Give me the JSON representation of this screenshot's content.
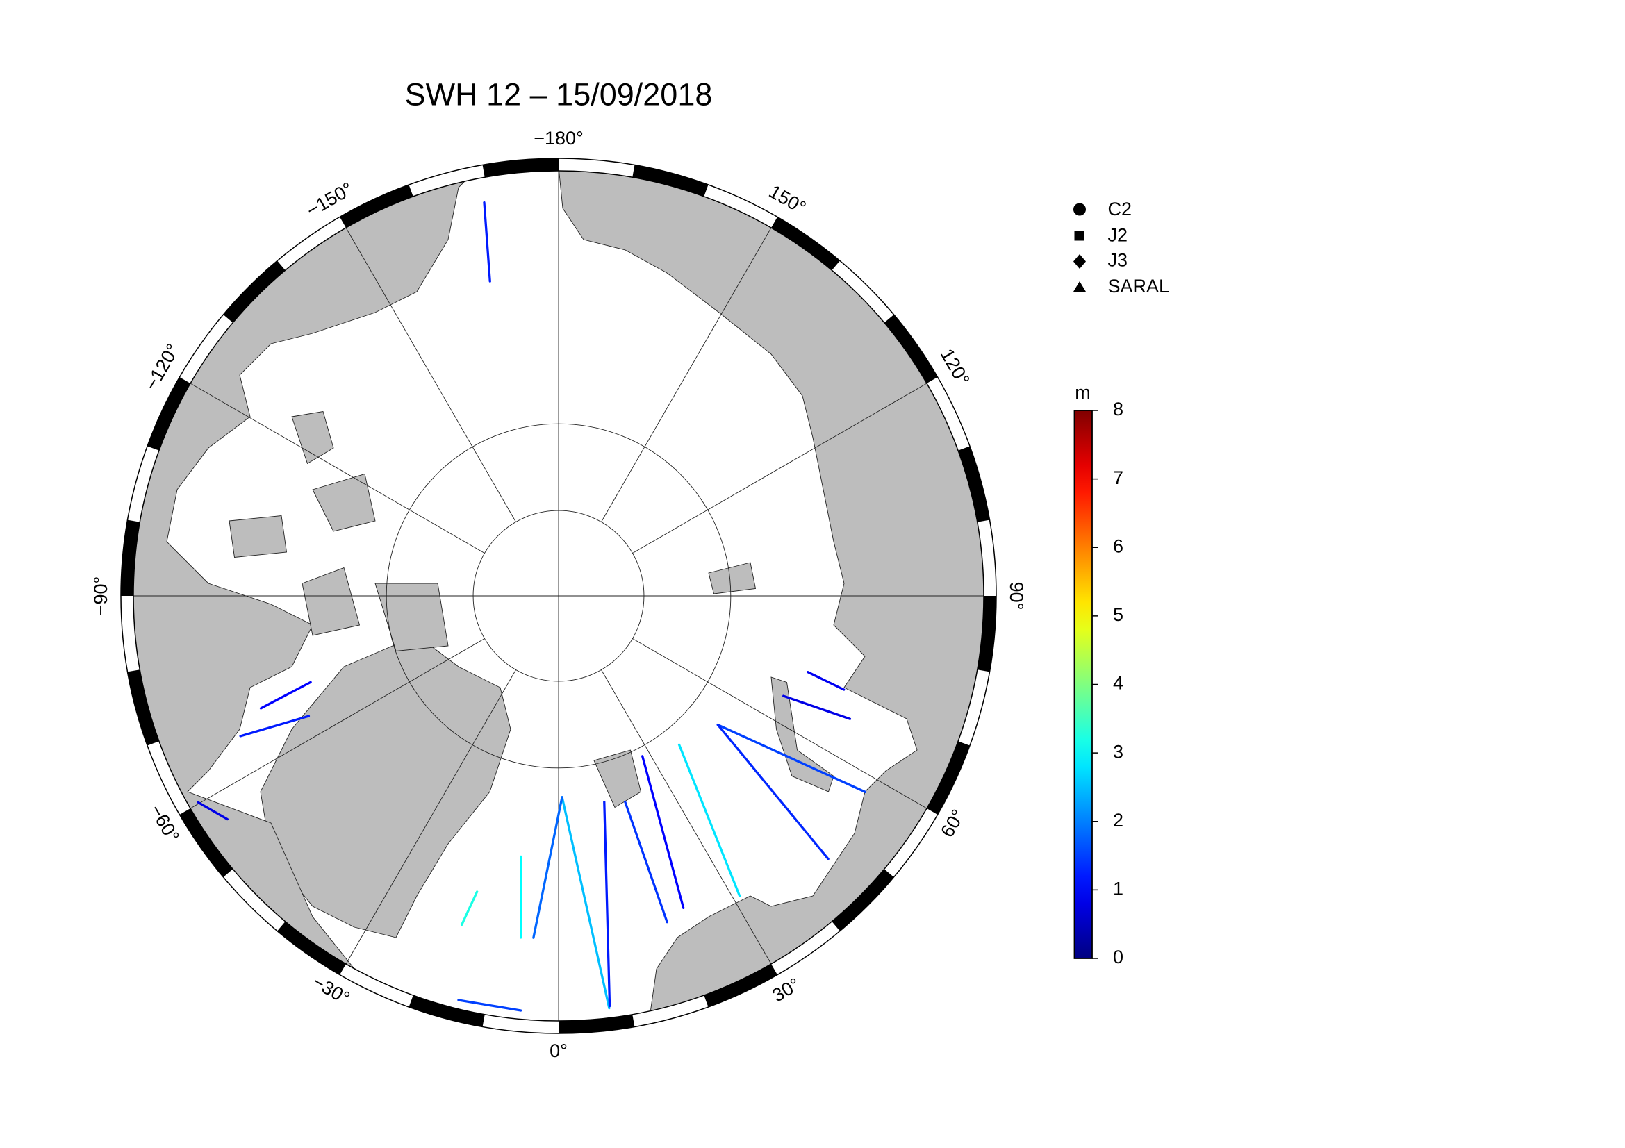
{
  "title": "SWH 12 – 15/09/2018",
  "lon_labels": [
    {
      "value": -180,
      "label": "−180°"
    },
    {
      "value": -150,
      "label": "−150°"
    },
    {
      "value": -120,
      "label": "−120°"
    },
    {
      "value": -90,
      "label": "−90°"
    },
    {
      "value": -60,
      "label": "−60°"
    },
    {
      "value": -30,
      "label": "−30°"
    },
    {
      "value": 0,
      "label": "0°"
    },
    {
      "value": 30,
      "label": "30°"
    },
    {
      "value": 60,
      "label": "60°"
    },
    {
      "value": 90,
      "label": "90°"
    },
    {
      "value": 120,
      "label": "120°"
    },
    {
      "value": 150,
      "label": "150°"
    }
  ],
  "legend": [
    "C2",
    "J2",
    "J3",
    "SARAL"
  ],
  "colorbar": {
    "unit": "m",
    "lim": [
      0,
      8
    ],
    "ticks": [
      0,
      1,
      2,
      3,
      4,
      5,
      6,
      7,
      8
    ]
  },
  "tracks": [
    {
      "lon": [
        1,
        7
      ],
      "lat": [
        66.7,
        43.9
      ],
      "swh": 2.5
    },
    {
      "lon": [
        1,
        -4.2
      ],
      "lat": [
        66.7,
        51.3
      ],
      "swh": 1.8
    },
    {
      "lon": [
        12.5,
        7.1
      ],
      "lat": [
        65.6,
        44.1
      ],
      "swh": 1.2
    },
    {
      "lon": [
        39,
        31.1
      ],
      "lat": [
        67.8,
        50.5
      ],
      "swh": 2.8
    },
    {
      "lon": [
        51,
        57.4
      ],
      "lat": [
        66.3,
        49.1
      ],
      "swh": 1.5
    },
    {
      "lon": [
        51,
        45.7
      ],
      "lat": [
        66.3,
        47.8
      ],
      "swh": 1.3
    },
    {
      "lon": [
        27.6,
        21.8
      ],
      "lat": [
        69,
        52
      ],
      "swh": 1.0
    },
    {
      "lon": [
        17.9,
        18.4
      ],
      "lat": [
        65,
        51.2
      ],
      "swh": 1.4
    },
    {
      "lon": [
        -8.2,
        -6.3
      ],
      "lat": [
        59.8,
        51.2
      ],
      "swh": 3.0
    },
    {
      "lon": [
        -15.4,
        -16.4
      ],
      "lat": [
        55.1,
        51.3
      ],
      "swh": 3.2
    },
    {
      "lon": [
        -66.2,
        -64.3
      ],
      "lat": [
        50.8,
        58.3
      ],
      "swh": 1.2
    },
    {
      "lon": [
        -69.3,
        -70.8
      ],
      "lat": [
        53.9,
        59.9
      ],
      "swh": 1.0
    },
    {
      "lon": [
        66,
        67.1
      ],
      "lat": [
        61.7,
        54.1
      ],
      "swh": 0.8
    },
    {
      "lon": [
        73,
        71.8
      ],
      "lat": [
        60.1,
        55.8
      ],
      "swh": 0.9
    },
    {
      "lon": [
        -169.3,
        -167.7
      ],
      "lat": [
        45.4,
        53.5
      ],
      "swh": 1.2
    },
    {
      "lon": [
        -13.9,
        -5.2
      ],
      "lat": [
        43.8,
        43.8
      ],
      "swh": 1.5
    },
    {
      "lon": [
        -60.2,
        -56
      ],
      "lat": [
        43.9,
        45.5
      ],
      "swh": 0.8
    }
  ]
}
